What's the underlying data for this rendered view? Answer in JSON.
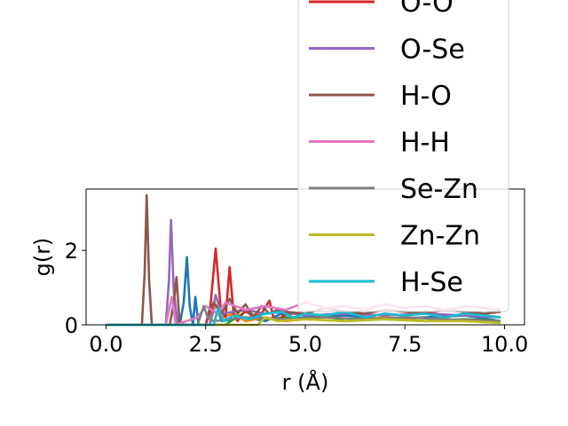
{
  "chart_data": {
    "type": "line",
    "xlabel": "r ($\\AA$)",
    "xlabel_display": "r (Å)",
    "ylabel": "g(r)",
    "xlim": [
      -0.5,
      10.5
    ],
    "ylim": [
      0,
      3.65
    ],
    "x_ticks": [
      0.0,
      2.5,
      5.0,
      7.5,
      10.0
    ],
    "x_tick_labels": [
      "0.0",
      "2.5",
      "5.0",
      "7.5",
      "10.0"
    ],
    "y_ticks": [
      0,
      2
    ],
    "y_tick_labels": [
      "0",
      "2"
    ],
    "grid": false,
    "legend_position": "upper-right",
    "series": [
      {
        "name": "",
        "color": "#1f77b4",
        "x": [
          0,
          1.85,
          1.95,
          2.03,
          2.1,
          2.18,
          2.24,
          2.32,
          2.7,
          2.8,
          2.9,
          3.5,
          4.0,
          4.4,
          4.6,
          5.0,
          6.0,
          7.0,
          8.0,
          9.0,
          9.9
        ],
        "y": [
          0,
          0,
          0.6,
          1.82,
          0.5,
          0,
          0.75,
          0,
          0,
          0.4,
          0.1,
          0.2,
          0.1,
          0.3,
          0.15,
          0.2,
          0.25,
          0.15,
          0.2,
          0.25,
          0.1
        ]
      },
      {
        "name": "",
        "color": "#ff7f0e",
        "x": [
          0,
          2.6,
          2.75,
          2.9,
          3.2,
          3.5,
          4.0,
          4.5,
          5.0,
          6.0,
          7.0,
          8.0,
          9.0,
          9.9
        ],
        "y": [
          0,
          0,
          0.55,
          0.2,
          0.3,
          0.1,
          0.2,
          0.1,
          0.15,
          0.1,
          0.2,
          0.1,
          0.15,
          0.1
        ]
      },
      {
        "name": "",
        "color": "#2ca02c",
        "x": [
          0,
          3.0,
          3.2,
          3.5,
          4.0,
          4.5,
          5.0,
          5.5,
          6.0,
          7.0,
          8.0,
          9.0,
          9.9
        ],
        "y": [
          0,
          0,
          0.15,
          0.35,
          0.15,
          0.2,
          0.15,
          0.25,
          0.1,
          0.15,
          0.1,
          0.15,
          0.1
        ]
      },
      {
        "name": "O-O",
        "color": "#d62728",
        "x": [
          0,
          2.5,
          2.62,
          2.75,
          2.88,
          3.0,
          3.1,
          3.2,
          3.3,
          3.5,
          3.7,
          3.9,
          4.1,
          4.2,
          4.3,
          4.5,
          5.0,
          5.5,
          6.0,
          6.5,
          7.0,
          7.5,
          8.0,
          8.5,
          9.0,
          9.5,
          9.9
        ],
        "y": [
          0,
          0,
          0.5,
          2.05,
          0.4,
          0.2,
          1.55,
          0.3,
          0.1,
          0.4,
          0.2,
          0.3,
          0.65,
          0.2,
          0.1,
          0.3,
          0.3,
          0.25,
          0.35,
          0.2,
          0.3,
          0.25,
          0.35,
          0.2,
          0.3,
          0.25,
          0.2
        ]
      },
      {
        "name": "O-Se",
        "color": "#9467bd",
        "x": [
          0,
          1.5,
          1.58,
          1.63,
          1.7,
          1.8,
          2.6,
          2.75,
          2.9,
          3.5,
          4.0,
          4.5,
          5.0,
          6.0,
          7.0,
          8.0,
          9.0,
          9.9
        ],
        "y": [
          0,
          0,
          1.2,
          2.82,
          0.9,
          0,
          0,
          0.8,
          0.3,
          0.4,
          0.3,
          0.35,
          0.25,
          0.3,
          0.25,
          0.3,
          0.25,
          0.2
        ]
      },
      {
        "name": "H-O",
        "color": "#8c564b",
        "x": [
          0,
          0.9,
          0.97,
          1.02,
          1.08,
          1.15,
          1.6,
          1.7,
          1.77,
          1.85,
          2.5,
          2.7,
          2.9,
          3.1,
          3.3,
          3.5,
          3.7,
          3.9,
          4.1,
          4.3,
          4.5,
          5.0,
          5.5,
          6.0,
          6.5,
          7.0,
          7.5,
          8.0,
          8.5,
          9.0,
          9.5,
          9.9
        ],
        "y": [
          0,
          0,
          1.4,
          3.48,
          1.2,
          0,
          0,
          0.6,
          1.28,
          0,
          0,
          0.6,
          0.3,
          0.7,
          0.3,
          0.55,
          0.2,
          0.5,
          0.3,
          0.4,
          0.35,
          0.3,
          0.45,
          0.35,
          0.3,
          0.4,
          0.35,
          0.3,
          0.4,
          0.35,
          0.3,
          0.35
        ]
      },
      {
        "name": "H-H",
        "color": "#e377c2",
        "x": [
          0,
          1.5,
          1.58,
          1.65,
          1.75,
          2.3,
          2.5,
          2.8,
          3.0,
          3.5,
          4.0,
          4.5,
          5.0,
          5.5,
          6.0,
          6.5,
          7.0,
          7.5,
          8.0,
          8.5,
          9.0,
          9.5,
          9.9
        ],
        "y": [
          0,
          0,
          0.4,
          0.75,
          0,
          0.2,
          0.5,
          0.3,
          0.6,
          0.4,
          0.5,
          0.4,
          0.6,
          0.45,
          0.5,
          0.4,
          0.55,
          0.45,
          0.5,
          0.4,
          0.5,
          0.45,
          0.4
        ]
      },
      {
        "name": "Se-Zn",
        "color": "#7f7f7f",
        "x": [
          0,
          2.3,
          2.45,
          2.55,
          2.7,
          3.5,
          4.5,
          5.5,
          6.5,
          7.5,
          8.5,
          9.9
        ],
        "y": [
          0,
          0,
          0.5,
          0.2,
          0.1,
          0.2,
          0.15,
          0.2,
          0.15,
          0.2,
          0.15,
          0.1
        ]
      },
      {
        "name": "Zn-Zn",
        "color": "#bcbd22",
        "x": [
          0,
          3.8,
          4.0,
          4.3,
          5.0,
          6.0,
          7.0,
          8.0,
          9.0,
          9.9
        ],
        "y": [
          0,
          0,
          0.2,
          0.1,
          0.15,
          0.1,
          0.15,
          0.1,
          0.1,
          0.05
        ]
      },
      {
        "name": "H-Se",
        "color": "#17becf",
        "x": [
          0,
          2.7,
          2.82,
          2.95,
          3.2,
          3.6,
          4.0,
          4.4,
          4.7,
          5.0,
          5.5,
          6.0,
          6.5,
          7.0,
          7.5,
          8.0,
          8.5,
          9.0,
          9.5,
          9.9
        ],
        "y": [
          0,
          0,
          0.45,
          0.1,
          0.25,
          0.15,
          0.3,
          0.35,
          0.2,
          0.3,
          0.25,
          0.35,
          0.2,
          0.3,
          0.25,
          0.3,
          0.2,
          0.3,
          0.25,
          0.2
        ]
      }
    ]
  }
}
